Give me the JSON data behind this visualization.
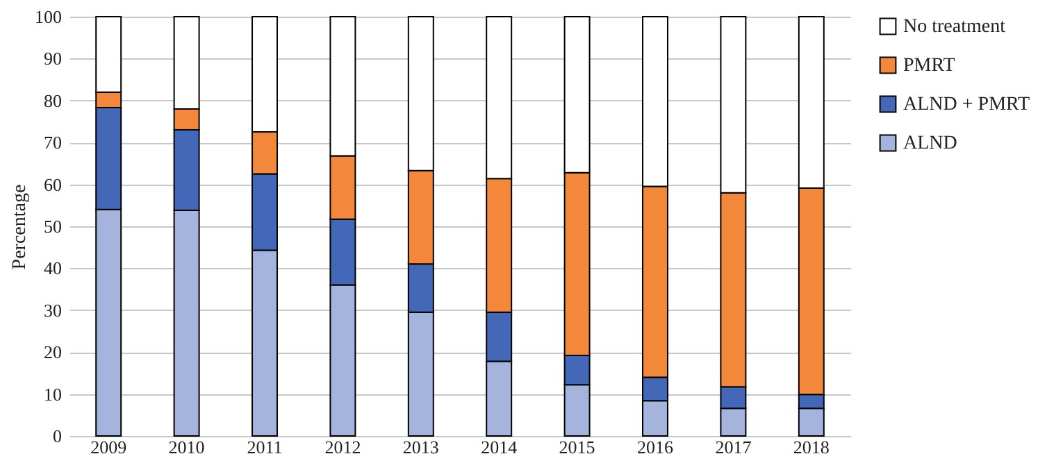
{
  "chart_data": {
    "type": "bar",
    "stacked": true,
    "ylabel": "Percentage",
    "categories": [
      "2009",
      "2010",
      "2011",
      "2012",
      "2013",
      "2014",
      "2015",
      "2016",
      "2017",
      "2018"
    ],
    "series": [
      {
        "name": "ALND",
        "color": "#a4b4dc",
        "values": [
          54,
          53.8,
          44.3,
          36,
          29.5,
          17.8,
          12.2,
          8.4,
          6.6,
          6.6
        ]
      },
      {
        "name": "ALND + PMRT",
        "color": "#4468b8",
        "values": [
          24.3,
          19.2,
          18.2,
          15.7,
          11.5,
          11.7,
          7,
          5.6,
          5.1,
          3.3
        ]
      },
      {
        "name": "PMRT",
        "color": "#f4883a",
        "values": [
          3.7,
          5,
          10,
          15.1,
          22.3,
          31.9,
          43.6,
          45.5,
          46.3,
          49.2
        ]
      },
      {
        "name": "No treatment",
        "color": "#ffffff",
        "values": [
          18,
          22,
          27.5,
          33.2,
          36.7,
          38.6,
          37.2,
          40.5,
          42,
          40.9
        ]
      }
    ],
    "ylim": [
      0,
      100
    ],
    "yticks": [
      0,
      10,
      20,
      30,
      40,
      50,
      60,
      70,
      80,
      90,
      100
    ],
    "grid": "y",
    "legend": "right"
  }
}
